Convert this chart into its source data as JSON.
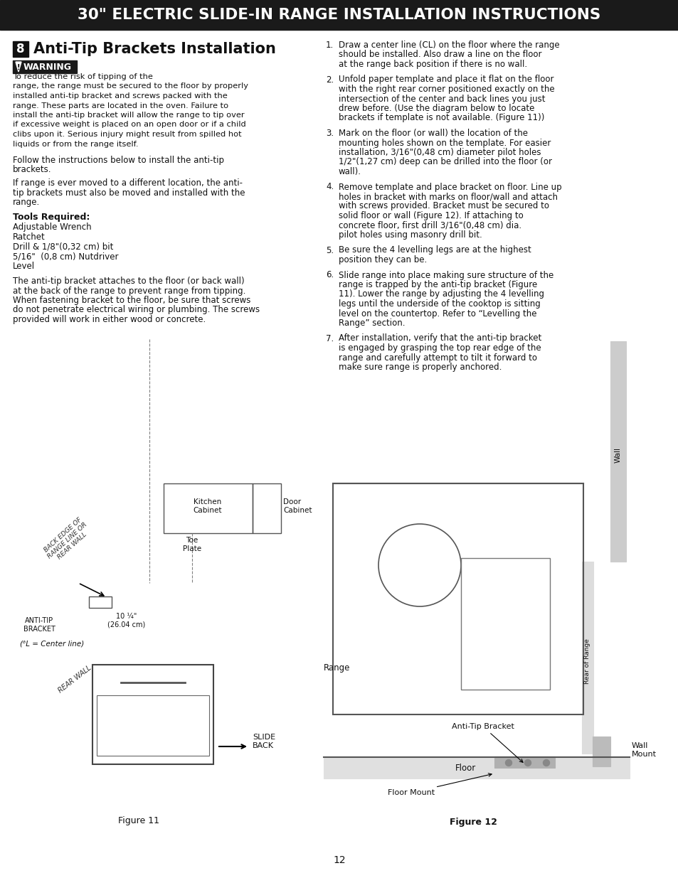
{
  "title_bar_text": "30\" ELECTRIC SLIDE-IN RANGE INSTALLATION INSTRUCTIONS",
  "title_bar_bg": "#1a1a1a",
  "title_bar_color": "#ffffff",
  "page_bg": "#ffffff",
  "section_number": "8",
  "section_title": "Anti-Tip Brackets Installation",
  "warning_bg": "#1a1a1a",
  "warning_text_color": "#ffffff",
  "warning_label": "WARNING",
  "warning_body": "To reduce the risk of tipping of the\nrange, the range must be secured to the floor by properly\ninstalled anti-tip bracket and screws packed with the\nrange. These parts are located in the oven. Failure to\ninstall the anti-tip bracket will allow the range to tip over\nif excessive weight is placed on an open door or if a child\nclibs upon it. Serious injury might result from spilled hot\nliquids or from the range itself.",
  "para1": "Follow the instructions below to install the anti-tip\nbrackets.",
  "para2": "If range is ever moved to a different location, the anti-\ntip brackets must also be moved and installed with the\nrange.",
  "tools_title": "Tools Required:",
  "tools_list": [
    "Adjustable Wrench",
    "Ratchet",
    "Drill & 1/8\"(0,32 cm) bit",
    "5/16\"  (0,8 cm) Nutdriver",
    "Level"
  ],
  "para3": "The anti-tip bracket attaches to the floor (or back wall)\nat the back of the range to prevent range from tipping.\nWhen fastening bracket to the floor, be sure that screws\ndo not penetrate electrical wiring or plumbing. The screws\nprovided will work in either wood or concrete.",
  "fig11_caption": "Figure 11",
  "fig12_caption": "Figure 12",
  "right_steps": [
    "Draw a center line (CL) on the floor where the range should be installed. Also draw a line on the floor at the range back position if there is no wall.",
    "Unfold paper template and place it flat on the floor with the right rear corner positioned exactly on the intersection of the center and back lines you just drew before. (Use the diagram below to locate brackets if template is not available. (Figure 11))",
    "Mark on the floor (or wall) the location of the mounting holes shown on the template. For easier installation, 3/16\"(0,48 cm) diameter pilot holes 1/2\"(1,27 cm) deep can be drilled into the floor (or wall).",
    "Remove template and place bracket on floor. Line up holes in bracket with marks on floor/wall and attach with screws provided. Bracket must be secured to solid floor or wall (Figure 12). If attaching to concrete floor, first drill 3/16\"(0,48 cm) dia. pilot holes using masonry drill bit.",
    "Be sure the 4 levelling legs are at the highest position they can be.",
    "Slide range into place making sure structure of the range is trapped by the anti-tip bracket (Figure 11). Lower the range by adjusting the 4 levelling legs until the underside of the cooktop is sitting level on the countertop. Refer to “Levelling the Range” section.",
    "After installation, verify that the anti-tip bracket is engaged by grasping the top rear edge of the range and carefully attempt to tilt it forward to make sure range is properly anchored."
  ],
  "page_number": "12",
  "text_color": "#111111"
}
